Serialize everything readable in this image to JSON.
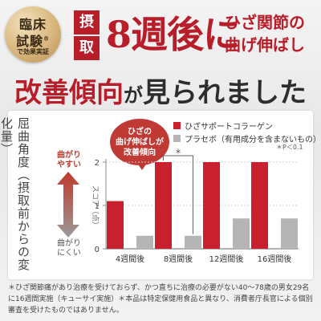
{
  "badge": {
    "line1": "臨床",
    "line2": "試験",
    "line2_mark": "®",
    "line3": "で効果実証"
  },
  "header": {
    "chip1": "摂",
    "chip2": "取",
    "big": "8週後に",
    "right_line1": "ひざ関節の",
    "right_line2": "曲げ伸ばし"
  },
  "subhead": {
    "part1": "改善傾向",
    "part2": "が",
    "part3": "見られました"
  },
  "chart_side": {
    "vertical_label": "屈曲角度（摂取前からの変化量）",
    "up_label_1": "曲がり",
    "up_label_2": "やすい",
    "down_label_1": "曲がり",
    "down_label_2": "にくい"
  },
  "bubble": {
    "line1": "ひざの",
    "line2": "曲げ伸ばしが",
    "line3": "改善傾向"
  },
  "legend": {
    "series1": "ひざサポートコラーゲン",
    "series2": "プラセボ（有用成分を含まないもの）",
    "p_note": "＊P＜0.1"
  },
  "chart_data": {
    "type": "bar",
    "categories": [
      "4週間後",
      "8週間後",
      "12週間後",
      "16週間後"
    ],
    "series": [
      {
        "name": "ひざサポートコラーゲン",
        "values": [
          1.1,
          2.0,
          2.0,
          2.0
        ],
        "color": "#c8202c"
      },
      {
        "name": "プラセボ（有用成分を含まないもの）",
        "values": [
          0.3,
          0.3,
          0.7,
          0.7
        ],
        "color": "#b5b5b5"
      }
    ],
    "ylabel": "スコア（点）",
    "ylim": [
      0,
      2
    ],
    "yticks": [
      "0",
      "1",
      "2"
    ],
    "significance_marker": "＊",
    "significance_category": "8週間後"
  },
  "footnote": "＊ひざ関節痛があり治療を受けておらず、かつ直ちに治療の必要がない40〜78歳の男女29名に16週間実施（キューサイ実施）＊本品は特定保健用食品と異なり、消費者庁長官による個別審査を受けたものではありません。"
}
